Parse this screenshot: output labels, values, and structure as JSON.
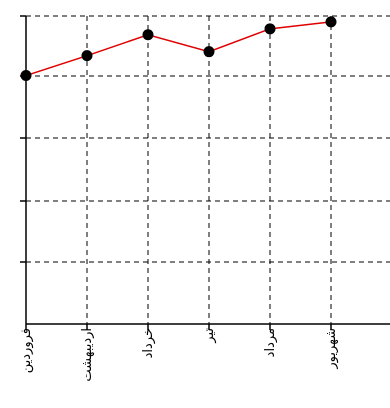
{
  "chart_data": {
    "type": "line",
    "categories": [
      "فروردین",
      "اردیبهشت",
      "خرداد",
      "تیر",
      "مرداد",
      "شهریور"
    ],
    "series": [
      {
        "values": [
          76,
          56,
          35,
          52,
          29,
          22
        ]
      }
    ],
    "ylim": [
      0,
      326
    ],
    "y_inverted": true,
    "grid": true,
    "grid_style": "dashed",
    "legend": "none",
    "colors": {
      "line": "#e00000",
      "marker": "#000000",
      "grid": "#000000",
      "axis": "#000000"
    }
  }
}
